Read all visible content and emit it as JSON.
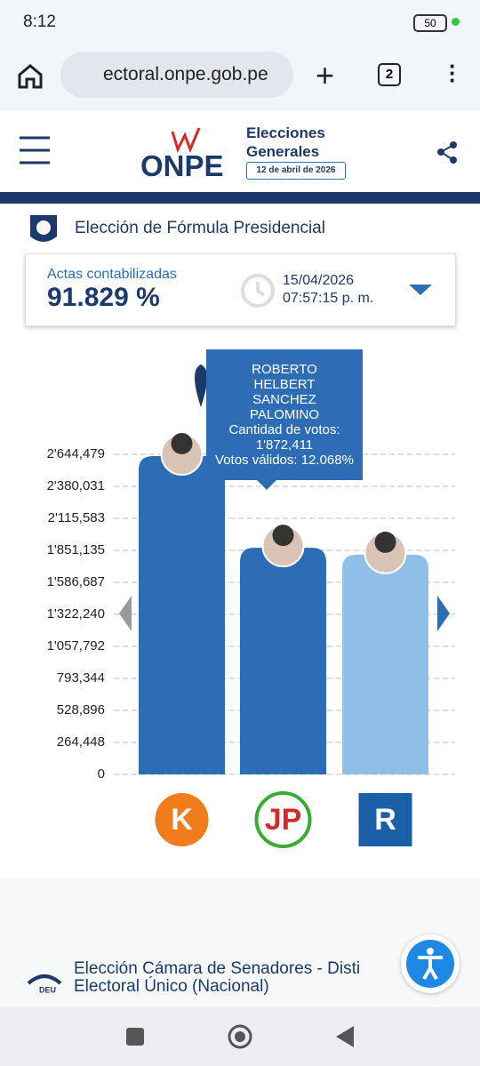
{
  "status_bar": {
    "time": "8:12",
    "battery": "50"
  },
  "browser": {
    "url": "ectoral.onpe.gob.pe",
    "tabs": "2"
  },
  "header": {
    "brand": "ONPE",
    "line1": "Elecciones",
    "line2": "Generales",
    "date": "12 de abril de 2026"
  },
  "section": {
    "title": "Elección de Fórmula Presidencial"
  },
  "actas": {
    "label": "Actas contabilizadas",
    "percent": "91.829 %",
    "date": "15/04/2026",
    "time": "07:57:15 p. m."
  },
  "chart_data": {
    "type": "bar",
    "categories": [
      null,
      null,
      null
    ],
    "values": [
      2630000,
      1872411,
      1815000
    ],
    "colors": [
      "#2d6db5",
      "#2d6db5",
      "#8dbfe9"
    ],
    "ylim": [
      0,
      2644479
    ],
    "yticks": [
      0,
      {
        "value": 264448,
        "label": "264,448"
      },
      {
        "value": 528896,
        "label": "528,896"
      },
      {
        "value": 793344,
        "label": "793,344"
      },
      {
        "value": 1057792,
        "label": "1'057,792"
      },
      {
        "value": 1322240,
        "label": "1'322,240"
      },
      {
        "value": 1586687,
        "label": "1'586,687"
      },
      {
        "value": 1851135,
        "label": "1'851,135"
      },
      {
        "value": 2115583,
        "label": "2'115,583"
      },
      {
        "value": 2380031,
        "label": "2'380,031"
      },
      {
        "value": 2644479,
        "label": "2'644,479"
      }
    ],
    "grid": true,
    "tooltip": {
      "name": "ROBERTO HELBERT SANCHEZ PALOMINO",
      "votes": "Cantidad de votos: 1'872,411",
      "valid": "Votos válidos: 12.068%"
    }
  },
  "party_logos": [
    "K",
    "JP",
    "R"
  ],
  "section2": {
    "icon": "DEU",
    "line1": "Elección Cámara de Senadores - Disti",
    "line2": "Electoral Único (Nacional)"
  }
}
